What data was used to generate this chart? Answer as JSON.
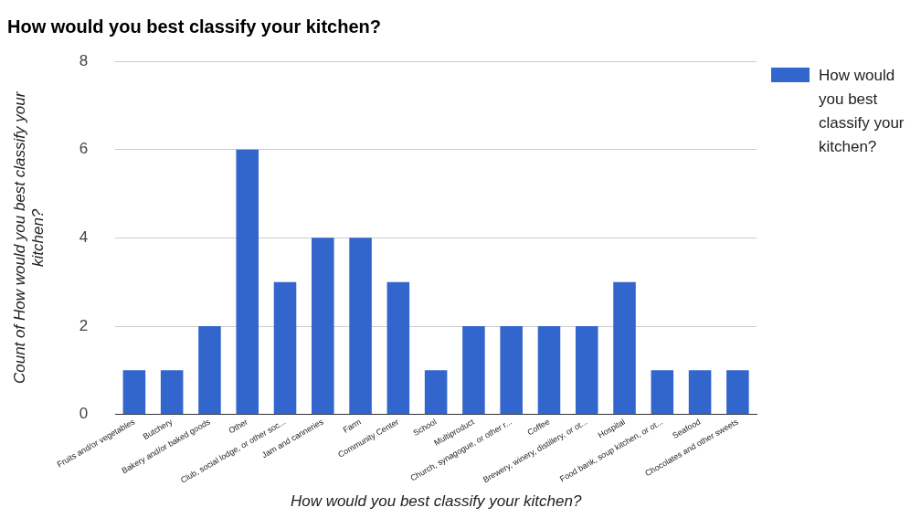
{
  "chart_data": {
    "type": "bar",
    "title": "How would you best classify your kitchen?",
    "xlabel": "How would you best classify your kitchen?",
    "ylabel": "Count of How would you best classify your kitchen?",
    "categories": [
      "Fruits and/or vegetables",
      "Butchery",
      "Bakery and/or baked goods",
      "Other",
      "Club, social lodge, or other soc...",
      "Jam and canneries",
      "Farm",
      "Community Center",
      "School",
      "Multiproduct",
      "Church, synagogue, or other r...",
      "Coffee",
      "Brewery, winery, distillery, or ot...",
      "Hospital",
      "Food bank, soup kitchen, or ot...",
      "Seafood",
      "Chocolates and other sweets"
    ],
    "series": [
      {
        "name": "How would you best classify your kitchen?",
        "color": "#3366cc",
        "values": [
          1,
          1,
          2,
          6,
          3,
          4,
          4,
          3,
          1,
          2,
          2,
          2,
          2,
          3,
          1,
          1,
          1
        ]
      }
    ],
    "ylim": [
      0,
      8
    ],
    "yticks": [
      0,
      2,
      4,
      6,
      8
    ],
    "grid": "y",
    "legend": "right"
  }
}
